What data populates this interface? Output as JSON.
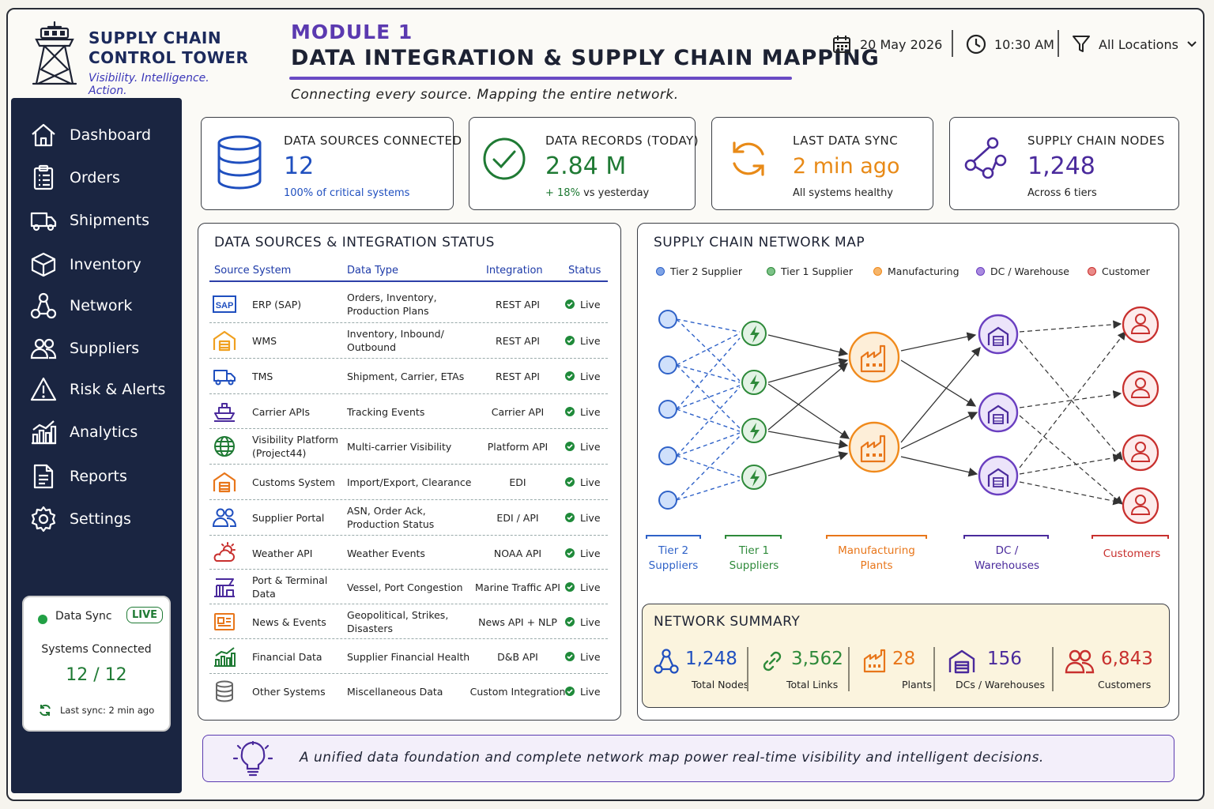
{
  "app": {
    "title_line1": "SUPPLY CHAIN",
    "title_line2": "CONTROL TOWER",
    "tagline": "Visibility. Intelligence. Action."
  },
  "header": {
    "module": "MODULE 1",
    "title": "DATA INTEGRATION & SUPPLY CHAIN MAPPING",
    "subtitle": "Connecting every source. Mapping the entire network.",
    "date": "20 May 2026",
    "time": "10:30 AM",
    "location_filter": "All Locations"
  },
  "sidebar": {
    "items": [
      {
        "label": "Dashboard",
        "icon": "home-icon"
      },
      {
        "label": "Orders",
        "icon": "clipboard-icon"
      },
      {
        "label": "Shipments",
        "icon": "truck-icon"
      },
      {
        "label": "Inventory",
        "icon": "box-icon"
      },
      {
        "label": "Network",
        "icon": "network-icon"
      },
      {
        "label": "Suppliers",
        "icon": "users-icon"
      },
      {
        "label": "Risk & Alerts",
        "icon": "warning-icon"
      },
      {
        "label": "Analytics",
        "icon": "analytics-icon"
      },
      {
        "label": "Reports",
        "icon": "document-icon"
      },
      {
        "label": "Settings",
        "icon": "gear-icon"
      }
    ],
    "sync": {
      "title": "Data Sync",
      "badge": "LIVE",
      "label": "Systems Connected",
      "value": "12 / 12",
      "last_sync": "Last sync: 2 min ago"
    }
  },
  "kpis": [
    {
      "label": "DATA SOURCES CONNECTED",
      "value": "12",
      "sub": "100% of critical systems",
      "color": "#1f4fbf",
      "icon": "database-icon"
    },
    {
      "label": "DATA RECORDS (TODAY)",
      "value": "2.84 M",
      "sub_highlight": "+ 18%",
      "sub": "vs yesterday",
      "color": "#1f7a34",
      "icon": "check-circle-icon"
    },
    {
      "label": "LAST DATA SYNC",
      "value": "2 min ago",
      "sub": "All systems healthy",
      "color": "#e88a17",
      "icon": "refresh-icon"
    },
    {
      "label": "SUPPLY CHAIN NODES",
      "value": "1,248",
      "sub": "Across 6 tiers",
      "color": "#4a2a9c",
      "icon": "nodes-icon"
    }
  ],
  "integration": {
    "title": "DATA SOURCES & INTEGRATION STATUS",
    "columns": [
      "Source System",
      "Data Type",
      "Integration",
      "Status"
    ],
    "rows": [
      {
        "source": "ERP (SAP)",
        "type": "Orders, Inventory, Production Plans",
        "integration": "REST API",
        "status": "Live",
        "icon": "sap-icon"
      },
      {
        "source": "WMS",
        "type": "Inventory, Inbound/ Outbound",
        "integration": "REST API",
        "status": "Live",
        "icon": "warehouse-icon"
      },
      {
        "source": "TMS",
        "type": "Shipment, Carrier, ETAs",
        "integration": "REST API",
        "status": "Live",
        "icon": "truck-icon"
      },
      {
        "source": "Carrier APIs",
        "type": "Tracking Events",
        "integration": "Carrier API",
        "status": "Live",
        "icon": "ship-icon"
      },
      {
        "source": "Visibility Platform (Project44)",
        "type": "Multi-carrier Visibility",
        "integration": "Platform API",
        "status": "Live",
        "icon": "globe-icon"
      },
      {
        "source": "Customs System",
        "type": "Import/Export, Clearance",
        "integration": "EDI",
        "status": "Live",
        "icon": "customs-icon"
      },
      {
        "source": "Supplier Portal",
        "type": "ASN, Order Ack, Production Status",
        "integration": "EDI / API",
        "status": "Live",
        "icon": "supplier-icon"
      },
      {
        "source": "Weather API",
        "type": "Weather Events",
        "integration": "NOAA API",
        "status": "Live",
        "icon": "weather-icon"
      },
      {
        "source": "Port & Terminal Data",
        "type": "Vessel, Port Congestion",
        "integration": "Marine Traffic API",
        "status": "Live",
        "icon": "port-icon"
      },
      {
        "source": "News & Events",
        "type": "Geopolitical, Strikes, Disasters",
        "integration": "News API + NLP",
        "status": "Live",
        "icon": "news-icon"
      },
      {
        "source": "Financial Data",
        "type": "Supplier Financial Health",
        "integration": "D&B API",
        "status": "Live",
        "icon": "chart-icon"
      },
      {
        "source": "Other Systems",
        "type": "Miscellaneous Data",
        "integration": "Custom Integration",
        "status": "Live",
        "icon": "database-icon"
      }
    ]
  },
  "network": {
    "title": "SUPPLY CHAIN NETWORK MAP",
    "legend": [
      {
        "label": "Tier 2 Supplier",
        "color": "#2f62c8"
      },
      {
        "label": "Tier 1 Supplier",
        "color": "#2e8a3a"
      },
      {
        "label": "Manufacturing",
        "color": "#f08a1c"
      },
      {
        "label": "DC / Warehouse",
        "color": "#6a3fc0"
      },
      {
        "label": "Customer",
        "color": "#c8302e"
      }
    ],
    "tiers": [
      {
        "line1": "Tier 2",
        "line2": "Suppliers",
        "color": "#2f62c8"
      },
      {
        "line1": "Tier 1",
        "line2": "Suppliers",
        "color": "#2e8a3a"
      },
      {
        "line1": "Manufacturing",
        "line2": "Plants",
        "color": "#e8761a"
      },
      {
        "line1": "DC /",
        "line2": "Warehouses",
        "color": "#4a2a9c"
      },
      {
        "line1": "Customers",
        "line2": "",
        "color": "#c8302e"
      }
    ],
    "summary": {
      "title": "NETWORK SUMMARY",
      "items": [
        {
          "value": "1,248",
          "label": "Total Nodes",
          "color": "#1f4fbf",
          "icon": "network-icon"
        },
        {
          "value": "3,562",
          "label": "Total Links",
          "color": "#2e8a3a",
          "icon": "link-icon"
        },
        {
          "value": "28",
          "label": "Plants",
          "color": "#e8761a",
          "icon": "factory-icon"
        },
        {
          "value": "156",
          "label": "DCs / Warehouses",
          "color": "#4a2a9c",
          "icon": "warehouse-icon"
        },
        {
          "value": "6,843",
          "label": "Customers",
          "color": "#c8302e",
          "icon": "users-icon"
        }
      ]
    }
  },
  "banner": {
    "text": "A unified data foundation and complete network map power real-time visibility and intelligent decisions.",
    "icon": "lightbulb-icon"
  }
}
